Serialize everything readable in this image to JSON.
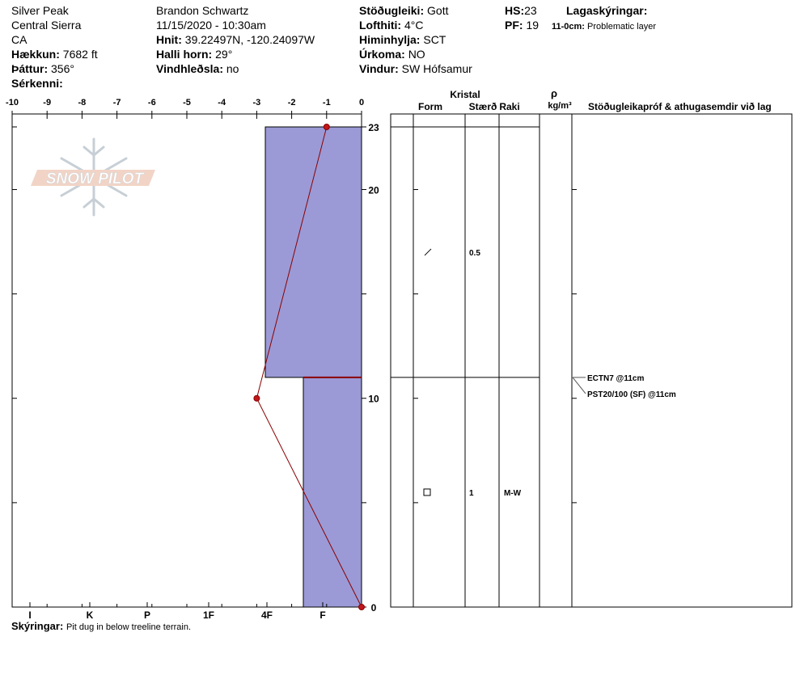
{
  "header": {
    "location": "Silver Peak",
    "range": "Central Sierra",
    "state": "CA",
    "elevation_label": "Hækkun:",
    "elevation": "7682 ft",
    "aspect_label": "Þáttur:",
    "aspect": "356°",
    "features_label": "Sérkenni:",
    "observer": "Brandon Schwartz",
    "datetime": "11/15/2020 - 10:30am",
    "coords_label": "Hnit:",
    "coords": "39.22497N, -120.24097W",
    "slope_label": "Halli horn:",
    "slope": "29°",
    "wind_loading_label": "Vindhleðsla:",
    "wind_loading": "no",
    "stability_label": "Stöðugleiki:",
    "stability": "Gott",
    "air_temp_label": "Lofthiti:",
    "air_temp": "4°C",
    "sky_label": "Himinhylja:",
    "sky": "SCT",
    "precip_label": "Úrkoma:",
    "precip": "NO",
    "wind_label": "Vindur:",
    "wind": "SW Hófsamur",
    "hs_label": "HS:",
    "hs": "23",
    "pf_label": "PF:",
    "pf": "19",
    "layer_notes_label": "Lagaskýringar:",
    "layer_note_depth": "11-0cm:",
    "layer_note_text": "Problematic layer"
  },
  "footer": {
    "notes_label": "Skýringar:",
    "notes": "Pit dug in below treeline terrain."
  },
  "watermark": "SNOW PILOT",
  "colors": {
    "hardness_fill": "#9b9ad6",
    "temp_line": "#8b0000",
    "temp_point": "#c0171b",
    "layer_line": "#8b0000"
  },
  "chart_data": {
    "type": "area",
    "temp_axis": {
      "ticks": [
        "-10",
        "-9",
        "-8",
        "-7",
        "-6",
        "-5",
        "-4",
        "-3",
        "-2",
        "-1",
        "0"
      ],
      "range": [
        -10,
        0
      ]
    },
    "depth_axis": {
      "ticks": [
        "23",
        "20",
        "10",
        "0"
      ],
      "range": [
        0,
        23
      ]
    },
    "hardness_axis": {
      "ticks": [
        "I",
        "K",
        "P",
        "1F",
        "4F",
        "F"
      ]
    },
    "temperature_profile": [
      {
        "depth": 23,
        "temp": -1
      },
      {
        "depth": 10,
        "temp": -3
      },
      {
        "depth": 0,
        "temp": 0
      }
    ],
    "hardness_layers": [
      {
        "top": 23,
        "bottom": 11,
        "hardness": "4F-"
      },
      {
        "top": 11,
        "bottom": 0,
        "hardness": "F+"
      }
    ],
    "table_headers": {
      "crystal": "Kristal",
      "form": "Form",
      "size": "Stærð",
      "moisture": "Raki",
      "rho": "ρ",
      "density_unit": "kg/m³",
      "tests": "Stöðugleikapróf & athugasemdir við lag"
    },
    "layer_rows": [
      {
        "depth_mid": 17,
        "form": "/",
        "size": "0.5",
        "moisture": ""
      },
      {
        "depth_mid": 5.5,
        "form": "□",
        "size": "1",
        "moisture": "M-W"
      }
    ],
    "stability_tests": [
      {
        "depth": 11,
        "text": "ECTN7 @11cm"
      },
      {
        "depth": 11,
        "text": "PST20/100 (SF) @11cm"
      }
    ]
  }
}
